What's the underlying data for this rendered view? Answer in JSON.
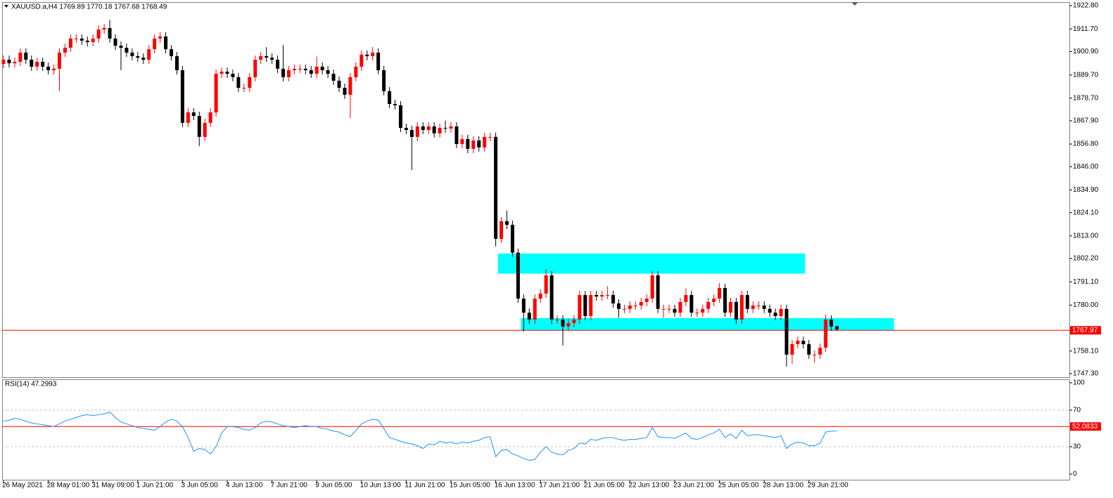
{
  "chart_data": [
    {
      "type": "candlestick",
      "title": "XAUUSD.a,H4  1769.89 1770.18 1767.68 1768.49",
      "up_color": "#ff0000",
      "down_color": "#000000",
      "categories": [
        "26 May 2021",
        null,
        null,
        null,
        null,
        null,
        null,
        null,
        "28 May 01:00",
        null,
        null,
        null,
        null,
        null,
        null,
        null,
        "31 May 09:00",
        null,
        null,
        null,
        null,
        null,
        null,
        null,
        "1 Jun 21:00",
        null,
        null,
        null,
        null,
        null,
        null,
        null,
        "3 Jun 05:00",
        null,
        null,
        null,
        null,
        null,
        null,
        null,
        "4 Jun 13:00",
        null,
        null,
        null,
        null,
        null,
        null,
        null,
        "7 Jun 21:00",
        null,
        null,
        null,
        null,
        null,
        null,
        null,
        "9 Jun 05:00",
        null,
        null,
        null,
        null,
        null,
        null,
        null,
        "10 Jun 13:00",
        null,
        null,
        null,
        null,
        null,
        null,
        null,
        "11 Jun 21:00",
        null,
        null,
        null,
        null,
        null,
        null,
        null,
        "15 Jun 05:00",
        null,
        null,
        null,
        null,
        null,
        null,
        null,
        "16 Jun 13:00",
        null,
        null,
        null,
        null,
        null,
        null,
        null,
        "17 Jun 21:00",
        null,
        null,
        null,
        null,
        null,
        null,
        null,
        "21 Jun 05:00",
        null,
        null,
        null,
        null,
        null,
        null,
        null,
        "22 Jun 13:00",
        null,
        null,
        null,
        null,
        null,
        null,
        null,
        "23 Jun 21:00",
        null,
        null,
        null,
        null,
        null,
        null,
        null,
        "25 Jun 05:00",
        null,
        null,
        null,
        null,
        null,
        null,
        null,
        "28 Jun 13:00",
        null,
        null,
        null,
        null,
        null,
        null,
        null,
        "29 Jun 21:00",
        null,
        null,
        null,
        null,
        null
      ],
      "open": [
        1895.0,
        1897.0,
        1895.3,
        1896.0,
        1900.4,
        1897.0,
        1893.7,
        1896.0,
        1893.7,
        1892.0,
        1892.7,
        1900.4,
        1902.7,
        1907.1,
        1907.1,
        1906.1,
        1905.4,
        1907.1,
        1911.4,
        1912.1,
        1907.1,
        1903.7,
        1902.7,
        1900.4,
        1898.7,
        1898.0,
        1897.0,
        1902.0,
        1907.1,
        1908.1,
        1902.0,
        1898.7,
        1892.0,
        1866.9,
        1871.9,
        1870.2,
        1860.2,
        1866.9,
        1871.9,
        1890.3,
        1891.3,
        1890.3,
        1888.7,
        1883.6,
        1883.6,
        1888.7,
        1897.0,
        1898.7,
        1898.0,
        1897.0,
        1892.7,
        1888.7,
        1892.0,
        1892.7,
        1892.7,
        1892.0,
        1890.3,
        1893.7,
        1892.0,
        1890.3,
        1887.0,
        1883.6,
        1880.3,
        1888.7,
        1893.7,
        1899.4,
        1898.7,
        1900.4,
        1892.0,
        1882.0,
        1875.9,
        1875.3,
        1864.5,
        1863.5,
        1860.2,
        1865.2,
        1863.5,
        1865.2,
        1861.9,
        1864.5,
        1864.2,
        1865.2,
        1856.8,
        1859.2,
        1854.5,
        1858.5,
        1855.2,
        1860.2,
        1860.2,
        1811.6,
        1820.0,
        1818.3,
        1805.0,
        1783.1,
        1776.4,
        1773.1,
        1783.1,
        1785.5,
        1794.2,
        1773.1,
        1773.1,
        1769.8,
        1771.4,
        1773.1,
        1784.8,
        1774.8,
        1784.8,
        1784.1,
        1784.8,
        1784.8,
        1780.8,
        1778.2,
        1778.2,
        1779.8,
        1779.8,
        1781.5,
        1783.1,
        1794.2,
        1778.2,
        1778.2,
        1778.2,
        1776.4,
        1781.5,
        1784.8,
        1776.4,
        1776.4,
        1778.2,
        1781.5,
        1783.1,
        1788.2,
        1776.4,
        1781.5,
        1773.1,
        1784.8,
        1778.2,
        1779.8,
        1779.8,
        1778.2,
        1776.4,
        1774.8,
        1778.2,
        1756.4,
        1761.4,
        1763.0,
        1761.4,
        1756.4,
        1756.4,
        1759.7,
        1773.1,
        1769.89
      ],
      "high": [
        1899.0,
        1899.0,
        1898.0,
        1902.4,
        1902.4,
        1899.0,
        1898.0,
        1898.0,
        1895.7,
        1894.7,
        1902.4,
        1904.7,
        1909.1,
        1909.1,
        1909.1,
        1908.1,
        1909.1,
        1913.4,
        1914.1,
        1916.0,
        1909.1,
        1905.7,
        1904.7,
        1902.4,
        1900.7,
        1900.0,
        1904.0,
        1909.1,
        1910.1,
        1910.1,
        1904.0,
        1900.7,
        1894.0,
        1873.9,
        1873.9,
        1872.2,
        1868.9,
        1873.9,
        1892.3,
        1893.3,
        1893.3,
        1892.3,
        1890.7,
        1885.6,
        1890.7,
        1899.0,
        1900.7,
        1903.0,
        1900.0,
        1899.0,
        1904.0,
        1894.0,
        1894.7,
        1894.7,
        1894.7,
        1894.0,
        1898.5,
        1895.7,
        1894.0,
        1892.3,
        1889.0,
        1885.6,
        1890.7,
        1895.7,
        1901.4,
        1901.4,
        1903.0,
        1902.4,
        1894.0,
        1884.0,
        1877.9,
        1877.3,
        1866.5,
        1865.5,
        1867.2,
        1867.2,
        1867.2,
        1867.2,
        1866.5,
        1868.0,
        1867.2,
        1867.2,
        1861.2,
        1861.2,
        1860.5,
        1860.5,
        1862.2,
        1862.2,
        1862.2,
        1822.0,
        1825.0,
        1820.3,
        1807.0,
        1785.1,
        1778.4,
        1785.1,
        1787.5,
        1797.0,
        1796.2,
        1775.1,
        1775.1,
        1773.4,
        1775.1,
        1786.8,
        1786.8,
        1786.8,
        1786.8,
        1786.8,
        1789.0,
        1786.8,
        1782.8,
        1780.2,
        1781.8,
        1781.8,
        1783.5,
        1785.1,
        1796.2,
        1796.2,
        1780.2,
        1780.2,
        1780.2,
        1783.5,
        1788.0,
        1786.8,
        1778.4,
        1780.2,
        1783.5,
        1785.1,
        1790.5,
        1790.2,
        1783.5,
        1783.5,
        1786.8,
        1786.8,
        1781.8,
        1781.8,
        1781.8,
        1780.2,
        1778.4,
        1780.2,
        1780.2,
        1763.4,
        1765.0,
        1765.0,
        1763.4,
        1758.4,
        1761.7,
        1775.5,
        1775.1,
        1770.18
      ],
      "low": [
        1893.0,
        1893.3,
        1893.3,
        1894.0,
        1895.0,
        1891.7,
        1891.7,
        1891.7,
        1890.0,
        1890.0,
        1882.0,
        1898.4,
        1900.7,
        1905.1,
        1904.1,
        1903.4,
        1903.4,
        1905.1,
        1909.4,
        1905.1,
        1901.7,
        1892.0,
        1898.4,
        1896.7,
        1896.0,
        1895.0,
        1895.0,
        1900.0,
        1905.1,
        1900.0,
        1896.7,
        1890.0,
        1864.9,
        1864.9,
        1868.2,
        1855.8,
        1858.2,
        1864.9,
        1869.9,
        1888.3,
        1888.3,
        1886.7,
        1881.6,
        1881.6,
        1881.6,
        1886.7,
        1895.0,
        1896.0,
        1895.0,
        1890.7,
        1886.7,
        1886.7,
        1890.0,
        1890.7,
        1890.0,
        1888.3,
        1888.3,
        1890.0,
        1888.3,
        1885.0,
        1881.6,
        1878.3,
        1869.2,
        1886.7,
        1891.7,
        1896.7,
        1896.7,
        1890.0,
        1880.0,
        1873.9,
        1873.3,
        1862.5,
        1861.5,
        1844.4,
        1858.2,
        1861.5,
        1861.5,
        1859.9,
        1859.9,
        1862.2,
        1862.2,
        1854.8,
        1854.8,
        1852.5,
        1852.5,
        1853.2,
        1853.2,
        1858.2,
        1808.0,
        1809.6,
        1816.3,
        1803.0,
        1781.1,
        1767.4,
        1771.1,
        1771.1,
        1781.1,
        1783.5,
        1771.1,
        1771.1,
        1760.7,
        1767.8,
        1769.4,
        1771.1,
        1772.8,
        1772.8,
        1782.1,
        1782.1,
        1782.8,
        1778.8,
        1774.0,
        1776.2,
        1776.2,
        1777.8,
        1777.8,
        1779.5,
        1781.1,
        1776.2,
        1774.0,
        1776.2,
        1774.4,
        1774.4,
        1779.5,
        1774.4,
        1774.4,
        1774.4,
        1776.2,
        1779.5,
        1781.1,
        1774.4,
        1774.4,
        1771.1,
        1771.1,
        1776.2,
        1776.2,
        1777.8,
        1776.2,
        1774.4,
        1772.8,
        1772.8,
        1750.7,
        1752.0,
        1759.4,
        1759.4,
        1754.4,
        1752.5,
        1754.4,
        1757.7,
        1767.8,
        1767.68
      ],
      "close": [
        1897.0,
        1895.3,
        1896.0,
        1900.4,
        1897.0,
        1893.7,
        1896.0,
        1893.7,
        1892.0,
        1892.7,
        1900.4,
        1902.7,
        1907.1,
        1907.1,
        1906.1,
        1905.4,
        1907.1,
        1911.4,
        1912.1,
        1907.1,
        1903.7,
        1902.7,
        1900.4,
        1898.7,
        1898.0,
        1897.0,
        1902.0,
        1907.1,
        1908.1,
        1902.0,
        1898.7,
        1892.0,
        1866.9,
        1871.9,
        1870.2,
        1860.2,
        1866.9,
        1871.9,
        1890.3,
        1891.3,
        1890.3,
        1888.7,
        1883.6,
        1883.6,
        1888.7,
        1897.0,
        1898.7,
        1898.0,
        1897.0,
        1892.7,
        1888.7,
        1892.0,
        1892.7,
        1892.7,
        1892.0,
        1890.3,
        1893.7,
        1892.0,
        1890.3,
        1887.0,
        1883.6,
        1880.3,
        1888.7,
        1893.7,
        1899.4,
        1898.7,
        1900.4,
        1892.0,
        1882.0,
        1875.9,
        1875.3,
        1864.5,
        1863.5,
        1860.2,
        1865.2,
        1863.5,
        1865.2,
        1861.9,
        1864.5,
        1864.2,
        1865.2,
        1856.8,
        1859.2,
        1854.5,
        1858.5,
        1855.2,
        1860.2,
        1860.2,
        1811.6,
        1820.0,
        1818.3,
        1805.0,
        1783.1,
        1776.4,
        1773.1,
        1783.1,
        1785.5,
        1794.2,
        1773.1,
        1773.1,
        1769.8,
        1771.4,
        1773.1,
        1784.8,
        1774.8,
        1784.8,
        1784.1,
        1784.8,
        1784.8,
        1780.8,
        1778.2,
        1778.2,
        1779.8,
        1779.8,
        1781.5,
        1783.1,
        1794.2,
        1778.2,
        1778.2,
        1778.2,
        1776.4,
        1781.5,
        1784.8,
        1776.4,
        1776.4,
        1778.2,
        1781.5,
        1783.1,
        1788.2,
        1776.4,
        1781.5,
        1773.1,
        1784.8,
        1778.2,
        1779.8,
        1779.8,
        1778.2,
        1776.4,
        1774.8,
        1778.2,
        1756.4,
        1761.4,
        1763.0,
        1761.4,
        1756.4,
        1756.4,
        1759.7,
        1773.1,
        1769.8,
        1768.49
      ],
      "ylim": [
        1745.63,
        1924.47
      ],
      "yticks": [
        {
          "value": 1922.8,
          "label": "1922.80"
        },
        {
          "value": 1911.7,
          "label": "1911.70"
        },
        {
          "value": 1900.9,
          "label": "1900.90"
        },
        {
          "value": 1889.7,
          "label": "1889.70"
        },
        {
          "value": 1878.7,
          "label": "1878.70"
        },
        {
          "value": 1867.9,
          "label": "1867.90"
        },
        {
          "value": 1856.8,
          "label": "1856.80"
        },
        {
          "value": 1846,
          "label": "1846.00"
        },
        {
          "value": 1834.9,
          "label": "1834.90"
        },
        {
          "value": 1824.1,
          "label": "1824.10"
        },
        {
          "value": 1813,
          "label": "1813.00"
        },
        {
          "value": 1802.2,
          "label": "1802.20"
        },
        {
          "value": 1791.1,
          "label": "1791.10"
        },
        {
          "value": 1780,
          "label": "1780.00"
        },
        {
          "value": 1758.1,
          "label": "1758.10"
        },
        {
          "value": 1747.3,
          "label": "1747.30"
        }
      ],
      "price_line": {
        "value": 1767.97,
        "color": "#ff0000"
      },
      "zones": [
        {
          "x0": 88.4,
          "x1": 143.3,
          "top": 1804.6,
          "bottom": 1795.0,
          "color": "#00ffff"
        },
        {
          "x0": 92.5,
          "x1": 159.2,
          "top": 1773.8,
          "bottom": 1768.1,
          "color": "#00ffff"
        }
      ]
    },
    {
      "type": "line",
      "title": "RSI(14) 47.2993",
      "color": "#1e90ff",
      "values": [
        58,
        59,
        61,
        60,
        58,
        56,
        55,
        54,
        53,
        52,
        55,
        58,
        60,
        62,
        64,
        65,
        64,
        65,
        66,
        68,
        62,
        57,
        55,
        53,
        51,
        50,
        49,
        48,
        52,
        57,
        60,
        58,
        52,
        40,
        25,
        28,
        27,
        22,
        30,
        45,
        52,
        52,
        51,
        49,
        48,
        51,
        56,
        58,
        57,
        55,
        53,
        52,
        51,
        52,
        53,
        52,
        52,
        50,
        49,
        47,
        46,
        43,
        41,
        48,
        55,
        58,
        60,
        59,
        50,
        40,
        38,
        36,
        34,
        33,
        31,
        28,
        33,
        32,
        36,
        34,
        35,
        33,
        35,
        34,
        36,
        37,
        40,
        41,
        19,
        26,
        27,
        22,
        20,
        17,
        15,
        16,
        24,
        30,
        24,
        22,
        21,
        26,
        28,
        34,
        33,
        38,
        37,
        39,
        40,
        40,
        38,
        37,
        38,
        38,
        39,
        40,
        51,
        41,
        40,
        40,
        39,
        42,
        45,
        39,
        38,
        40,
        43,
        45,
        49,
        40,
        44,
        39,
        48,
        42,
        43,
        43,
        42,
        41,
        40,
        42,
        28,
        33,
        35,
        34,
        31,
        31,
        34,
        46,
        47,
        47.2993
      ],
      "ylim": [
        -6.2,
        103.8
      ],
      "yticks": [
        100,
        70,
        30,
        0
      ],
      "levels": [
        70,
        30
      ],
      "marked_level": {
        "value": 52.0833,
        "color": "#ff0000"
      }
    }
  ]
}
